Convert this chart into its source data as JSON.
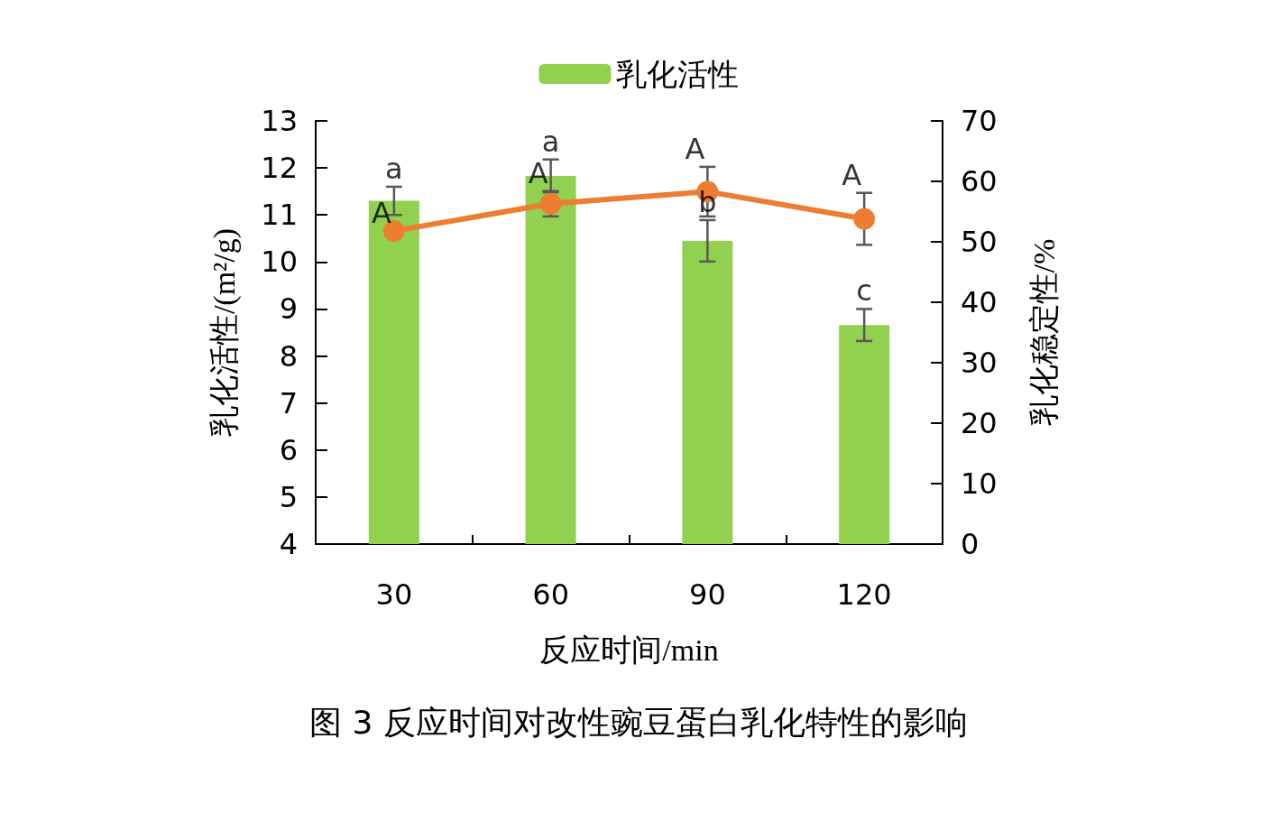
{
  "chart_data": {
    "type": "bar",
    "title": "图 3 反应时间对改性豌豆蛋白乳化特性的影响",
    "xlabel": "反应时间/min",
    "ylabel": "乳化活性/(m²/g)",
    "y2label": "乳化稳定性/%",
    "categories": [
      "30",
      "60",
      "90",
      "120"
    ],
    "series": [
      {
        "name": "乳化活性",
        "color": "#92d050",
        "values": [
          11.3,
          11.83,
          10.45,
          8.66
        ],
        "errors": [
          0.3,
          0.35,
          0.44,
          0.34
        ]
      },
      {
        "type": "line",
        "axis": "y2",
        "color": "#ed7d31",
        "values": [
          51.8,
          56.3,
          58.3,
          53.8
        ],
        "errors": [
          null,
          2.1,
          4.1,
          4.3
        ],
        "marker": "circle"
      }
    ],
    "ylim": [
      4,
      13
    ],
    "yticks": [
      4,
      5,
      6,
      7,
      8,
      9,
      10,
      11,
      12,
      13
    ],
    "y2lim": [
      0,
      70
    ],
    "y2ticks": [
      0,
      10,
      20,
      30,
      40,
      50,
      60,
      70
    ],
    "annotations": [
      "a",
      "a",
      "b",
      "c",
      "A",
      "A",
      "A",
      "A"
    ],
    "grid": false,
    "legend": "top"
  }
}
